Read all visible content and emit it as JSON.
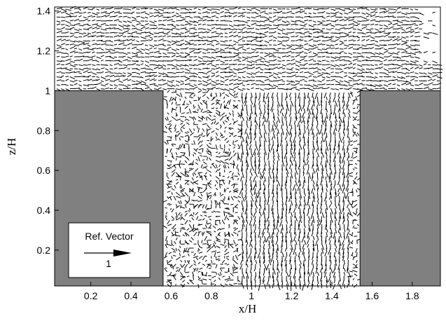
{
  "chart_data": {
    "type": "vector-field",
    "xlabel": "x/H",
    "ylabel": "z/H",
    "xlim": [
      0.02,
      1.94
    ],
    "ylim": [
      0.02,
      1.42
    ],
    "x_ticks": [
      "0.2",
      "0.4",
      "0.6",
      "0.8",
      "1",
      "1.2",
      "1.4",
      "1.6",
      "1.8"
    ],
    "y_ticks": [
      "0.2",
      "0.4",
      "0.6",
      "0.8",
      "1",
      "1.2",
      "1.4"
    ],
    "x_tick_values": [
      0.2,
      0.4,
      0.6,
      0.8,
      1.0,
      1.2,
      1.4,
      1.6,
      1.8
    ],
    "y_tick_values": [
      0.2,
      0.4,
      0.6,
      0.8,
      1.0,
      1.2,
      1.4
    ],
    "buildings": [
      {
        "x_start": 0.02,
        "x_end": 0.56,
        "height": 1.0
      },
      {
        "x_start": 1.54,
        "x_end": 1.94,
        "height": 1.0
      }
    ],
    "building_color": "#808080",
    "reference_vector": {
      "label": "Ref. Vector",
      "magnitude_label": "1",
      "magnitude": 1
    },
    "grid": false
  }
}
